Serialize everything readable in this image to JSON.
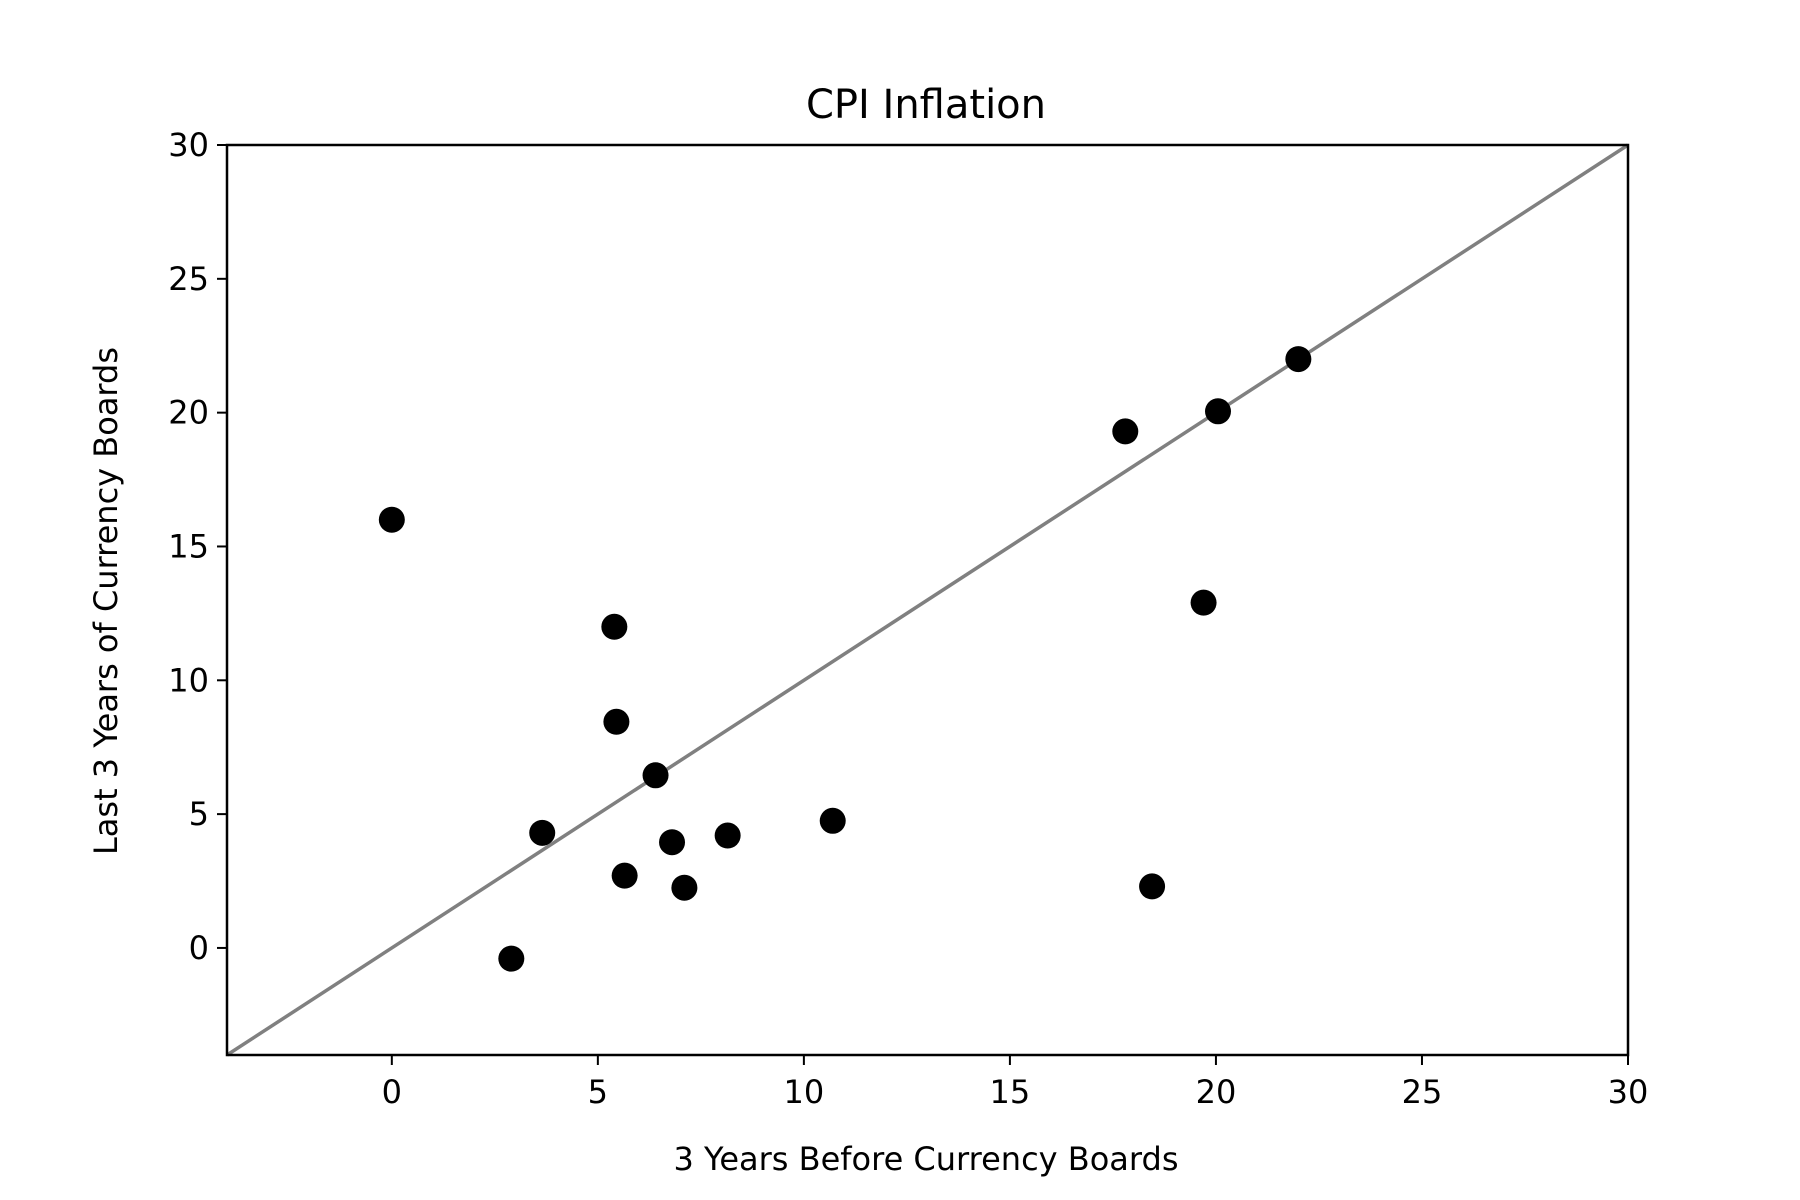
{
  "chart_data": {
    "type": "scatter",
    "title": "CPI Inflation",
    "xlabel": "3 Years Before Currency Boards",
    "ylabel": "Last 3 Years of Currency Boards",
    "xlim": [
      -4,
      30
    ],
    "ylim": [
      -4,
      30
    ],
    "xticks": [
      0,
      5,
      10,
      15,
      20,
      25,
      30
    ],
    "yticks": [
      0,
      5,
      10,
      15,
      20,
      25,
      30
    ],
    "grid": false,
    "reference_line": {
      "from": [
        -4,
        -4
      ],
      "to": [
        30,
        30
      ],
      "color": "#808080"
    },
    "marker_color": "#000000",
    "points": [
      {
        "x": 0.0,
        "y": 16.0
      },
      {
        "x": 2.9,
        "y": -0.4
      },
      {
        "x": 3.65,
        "y": 4.3
      },
      {
        "x": 5.4,
        "y": 12.0
      },
      {
        "x": 5.45,
        "y": 8.45
      },
      {
        "x": 5.65,
        "y": 2.7
      },
      {
        "x": 6.4,
        "y": 6.45
      },
      {
        "x": 6.8,
        "y": 3.95
      },
      {
        "x": 7.1,
        "y": 2.25
      },
      {
        "x": 8.15,
        "y": 4.2
      },
      {
        "x": 10.7,
        "y": 4.75
      },
      {
        "x": 17.8,
        "y": 19.3
      },
      {
        "x": 18.45,
        "y": 2.3
      },
      {
        "x": 19.7,
        "y": 12.9
      },
      {
        "x": 20.05,
        "y": 20.05
      },
      {
        "x": 22.0,
        "y": 22.0
      }
    ]
  }
}
